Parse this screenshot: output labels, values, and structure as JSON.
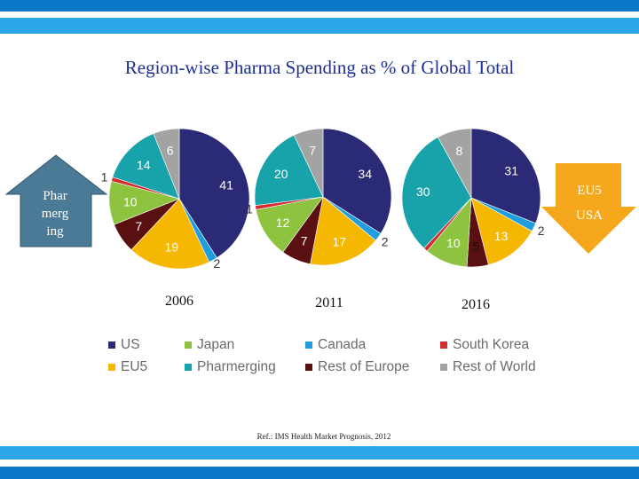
{
  "title": "Region-wise Pharma Spending as % of Global Total",
  "chart_data": {
    "type": "pie",
    "title": "Region-wise Pharma Spending as % of Global Total",
    "legend": "bottom",
    "categories": [
      "US",
      "Japan",
      "Canada",
      "South Korea",
      "EU5",
      "Pharmerging",
      "Rest of Europe",
      "Rest of World"
    ],
    "colors": {
      "US": "#2b2a77",
      "EU5": "#f5b700",
      "Japan": "#8dc33f",
      "Pharmerging": "#17a3a9",
      "Canada": "#1f9de0",
      "Rest of Europe": "#5a0f10",
      "South Korea": "#d52b33",
      "Rest of World": "#a3a3a3"
    },
    "order": [
      "US",
      "Canada",
      "EU5",
      "Rest of Europe",
      "Japan",
      "South Korea",
      "Pharmerging",
      "Rest of World"
    ],
    "pies": [
      {
        "year": "2006",
        "values": {
          "US": 41,
          "Canada": 2,
          "EU5": 19,
          "Rest of Europe": 7,
          "Japan": 10,
          "South Korea": 1,
          "Pharmerging": 14,
          "Rest of World": 6
        }
      },
      {
        "year": "2011",
        "values": {
          "US": 34,
          "Canada": 2,
          "EU5": 17,
          "Rest of Europe": 7,
          "Japan": 12,
          "South Korea": 1,
          "Pharmerging": 20,
          "Rest of World": 7
        }
      },
      {
        "year": "2016",
        "values": {
          "US": 31,
          "Canada": 2,
          "EU5": 13,
          "Rest of Europe": 5,
          "Japan": 10,
          "South Korea": 1,
          "Pharmerging": 30,
          "Rest of World": 8
        }
      }
    ]
  },
  "legend": {
    "items": [
      {
        "label": "US",
        "series": "US"
      },
      {
        "label": "Japan",
        "series": "Japan"
      },
      {
        "label": "Canada",
        "series": "Canada"
      },
      {
        "label": "South Korea",
        "series": "South Korea"
      },
      {
        "label": "EU5",
        "series": "EU5"
      },
      {
        "label": "Pharmerging",
        "series": "Pharmerging"
      },
      {
        "label": "Rest of Europe",
        "series": "Rest of Europe"
      },
      {
        "label": "Rest of World",
        "series": "Rest of World"
      }
    ]
  },
  "arrow_up": {
    "lines": [
      "Phar",
      "merg",
      "ing"
    ],
    "color": "#4a7a96"
  },
  "arrow_down": {
    "lines": [
      "EU5",
      "USA"
    ],
    "color": "#f6a81c"
  },
  "reference": "Ref.: IMS Health Market Prognosis, 2012"
}
